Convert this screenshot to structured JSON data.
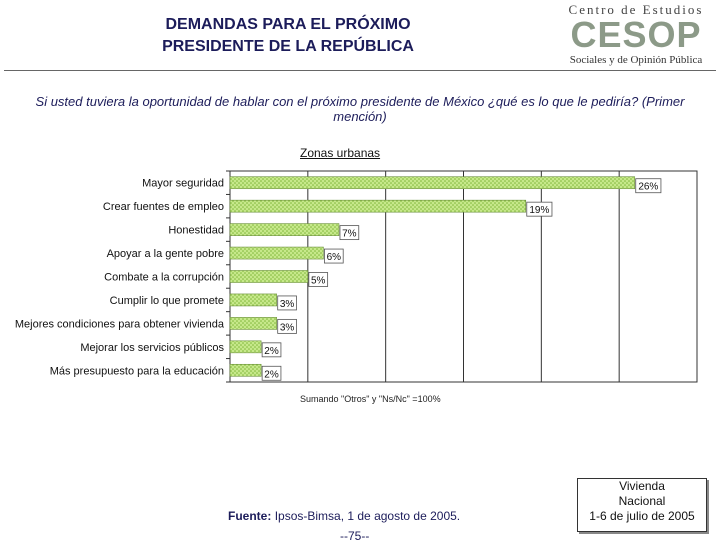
{
  "header": {
    "title_line1": "DEMANDAS PARA EL PRÓXIMO",
    "title_line2": "PRESIDENTE DE LA REPÚBLICA"
  },
  "logo": {
    "top_text": "Centro de Estudios",
    "mark_text": "CESOP",
    "bottom_text": "Sociales y de Opinión Pública"
  },
  "question": "Si usted tuviera la oportunidad de hablar con el próximo presidente de México ¿qué es lo que le pediría? (Primer mención)",
  "subtitle": "Zonas urbanas",
  "note": "Sumando \"Otros\" y \"Ns/Nc\" =100%",
  "source": {
    "label": "Fuente:",
    "text": "Ipsos-Bimsa, 1 de agosto de 2005."
  },
  "page_number": "--75--",
  "info_box": {
    "line1": "Vivienda",
    "line2": "Nacional",
    "line3": "1-6 de julio de 2005"
  },
  "colors": {
    "bar_fill": "#c6e88a",
    "bar_stripe": "#7fb63a",
    "title": "#1c1c5a"
  },
  "chart_data": {
    "type": "bar",
    "orientation": "horizontal",
    "title": "Zonas urbanas",
    "categories": [
      "Mayor seguridad",
      "Crear fuentes de empleo",
      "Honestidad",
      "Apoyar a la gente pobre",
      "Combate a la corrupción",
      "Cumplir lo que promete",
      "Mejores condiciones para obtener vivienda",
      "Mejorar los servicios públicos",
      "Más presupuesto para la educación"
    ],
    "values": [
      26,
      19,
      7,
      6,
      5,
      3,
      3,
      2,
      2
    ],
    "value_labels": [
      "26%",
      "19%",
      "7%",
      "6%",
      "5%",
      "3%",
      "3%",
      "2%",
      "2%"
    ],
    "xlim": [
      0,
      30
    ],
    "gridlines": true
  }
}
